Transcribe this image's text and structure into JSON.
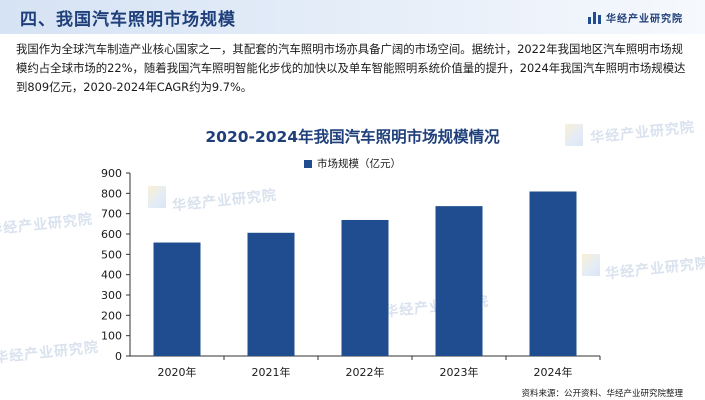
{
  "header": {
    "title": "四、我国汽车照明市场规模",
    "brand": "华经产业研究院",
    "brand_icon": "bar-chart-logo-icon",
    "background_color": "#dbe6f5"
  },
  "intro_text": "我国作为全球汽车制造产业核心国家之一，其配套的汽车照明市场亦具备广阔的市场空间。据统计，2022年我国地区汽车照明市场规模约占全球市场的22%，随着我国汽车照明智能化步伐的加快以及单车智能照明系统价值量的提升，2024年我国汽车照明市场规模达到809亿元，2020-2024年CAGR约为9.7%。",
  "watermark": "华经产业研究院",
  "chart_data": {
    "type": "bar",
    "title": "2020-2024年我国汽车照明市场规模情况",
    "categories": [
      "2020年",
      "2021年",
      "2022年",
      "2023年",
      "2024年"
    ],
    "series": [
      {
        "name": "市场规模（亿元）",
        "values": [
          558,
          606,
          669,
          737,
          809
        ]
      }
    ],
    "xlabel": "",
    "ylabel": "",
    "ylim": [
      0,
      900
    ],
    "yticks": [
      0,
      100,
      200,
      300,
      400,
      500,
      600,
      700,
      800,
      900
    ],
    "grid": false,
    "legend_position": "top-center",
    "bar_color": "#1f4d8f"
  },
  "source": "资料来源：公开资料、华经产业研究院整理"
}
